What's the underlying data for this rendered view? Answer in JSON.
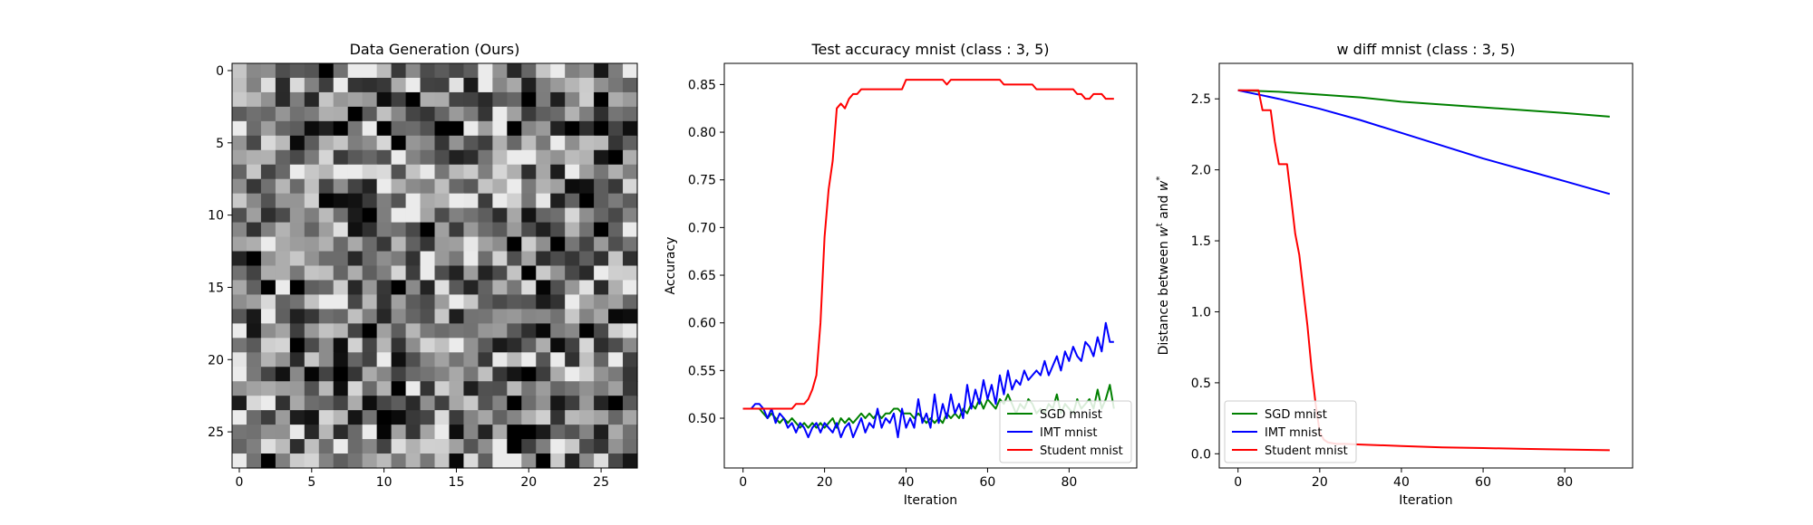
{
  "chart_data": [
    {
      "type": "heatmap",
      "title": "Data Generation (Ours)",
      "xlabel": "",
      "ylabel": "",
      "colormap": "gray",
      "xlim": [
        -0.5,
        27.5
      ],
      "ylim": [
        27.5,
        -0.5
      ],
      "xticks": [
        0,
        5,
        10,
        15,
        20,
        25
      ],
      "yticks": [
        0,
        5,
        10,
        15,
        20,
        25
      ],
      "rows": 28,
      "cols": 28,
      "note_values": "random grayscale noise pattern, 0 = black, 1 = white"
    },
    {
      "type": "line",
      "title": "Test accuracy mnist (class : 3, 5)",
      "xlabel": "Iteration",
      "ylabel": "Accuracy",
      "xlim": [
        -4.6,
        96.6
      ],
      "ylim": [
        0.4478,
        0.8722
      ],
      "xticks": [
        0,
        20,
        40,
        60,
        80
      ],
      "yticks": [
        0.5,
        0.55,
        0.6,
        0.65,
        0.7,
        0.75,
        0.8,
        0.85
      ],
      "legend_position": "lower-right",
      "series": [
        {
          "name": "SGD mnist",
          "color": "#008000",
          "x_start": 0,
          "values": [
            0.51,
            0.51,
            0.51,
            0.51,
            0.51,
            0.505,
            0.5,
            0.505,
            0.5,
            0.495,
            0.5,
            0.495,
            0.5,
            0.495,
            0.49,
            0.495,
            0.49,
            0.495,
            0.49,
            0.495,
            0.49,
            0.495,
            0.5,
            0.49,
            0.5,
            0.495,
            0.5,
            0.495,
            0.5,
            0.505,
            0.5,
            0.505,
            0.5,
            0.505,
            0.5,
            0.505,
            0.505,
            0.51,
            0.51,
            0.505,
            0.505,
            0.505,
            0.5,
            0.505,
            0.5,
            0.495,
            0.5,
            0.495,
            0.5,
            0.495,
            0.505,
            0.5,
            0.505,
            0.5,
            0.51,
            0.505,
            0.515,
            0.51,
            0.52,
            0.51,
            0.52,
            0.515,
            0.51,
            0.52,
            0.515,
            0.525,
            0.515,
            0.505,
            0.515,
            0.51,
            0.52,
            0.515,
            0.505,
            0.51,
            0.505,
            0.515,
            0.51,
            0.525,
            0.505,
            0.515,
            0.51,
            0.505,
            0.52,
            0.51,
            0.515,
            0.52,
            0.51,
            0.53,
            0.51,
            0.52,
            0.535,
            0.51
          ]
        },
        {
          "name": "IMT mnist",
          "color": "#0000ff",
          "x_start": 0,
          "values": [
            0.51,
            0.51,
            0.51,
            0.515,
            0.515,
            0.51,
            0.5,
            0.51,
            0.495,
            0.505,
            0.5,
            0.49,
            0.495,
            0.485,
            0.495,
            0.49,
            0.48,
            0.49,
            0.495,
            0.485,
            0.495,
            0.49,
            0.485,
            0.495,
            0.48,
            0.49,
            0.495,
            0.48,
            0.49,
            0.5,
            0.485,
            0.495,
            0.49,
            0.51,
            0.49,
            0.5,
            0.495,
            0.505,
            0.48,
            0.51,
            0.49,
            0.5,
            0.49,
            0.52,
            0.495,
            0.505,
            0.49,
            0.525,
            0.495,
            0.515,
            0.5,
            0.525,
            0.505,
            0.515,
            0.5,
            0.535,
            0.51,
            0.53,
            0.515,
            0.54,
            0.52,
            0.535,
            0.515,
            0.545,
            0.525,
            0.55,
            0.53,
            0.54,
            0.535,
            0.55,
            0.54,
            0.545,
            0.55,
            0.545,
            0.56,
            0.545,
            0.555,
            0.565,
            0.55,
            0.57,
            0.56,
            0.575,
            0.565,
            0.56,
            0.58,
            0.575,
            0.565,
            0.585,
            0.57,
            0.6,
            0.58,
            0.58
          ]
        },
        {
          "name": "Student mnist",
          "color": "#ff0000",
          "x_start": 0,
          "values": [
            0.51,
            0.51,
            0.51,
            0.51,
            0.51,
            0.51,
            0.51,
            0.51,
            0.51,
            0.51,
            0.51,
            0.51,
            0.51,
            0.515,
            0.515,
            0.515,
            0.52,
            0.53,
            0.545,
            0.6,
            0.69,
            0.74,
            0.77,
            0.825,
            0.83,
            0.825,
            0.835,
            0.84,
            0.84,
            0.845,
            0.845,
            0.845,
            0.845,
            0.845,
            0.845,
            0.845,
            0.845,
            0.845,
            0.845,
            0.845,
            0.855,
            0.855,
            0.855,
            0.855,
            0.855,
            0.855,
            0.855,
            0.855,
            0.855,
            0.855,
            0.85,
            0.855,
            0.855,
            0.855,
            0.855,
            0.855,
            0.855,
            0.855,
            0.855,
            0.855,
            0.855,
            0.855,
            0.855,
            0.855,
            0.85,
            0.85,
            0.85,
            0.85,
            0.85,
            0.85,
            0.85,
            0.85,
            0.845,
            0.845,
            0.845,
            0.845,
            0.845,
            0.845,
            0.845,
            0.845,
            0.845,
            0.845,
            0.84,
            0.84,
            0.835,
            0.835,
            0.84,
            0.84,
            0.84,
            0.835,
            0.835,
            0.835
          ]
        }
      ]
    },
    {
      "type": "line",
      "title": "w diff mnist (class : 3, 5)",
      "xlabel": "Iteration",
      "ylabel": "Distance between w^t and w^*",
      "ylabel_main": "Distance between ",
      "ylabel_w": "w",
      "ylabel_t": "t",
      "ylabel_and": " and ",
      "ylabel_star": "*",
      "xlim": [
        -4.6,
        96.6
      ],
      "ylim": [
        -0.1,
        2.75
      ],
      "xticks": [
        0,
        20,
        40,
        60,
        80
      ],
      "yticks": [
        0.0,
        0.5,
        1.0,
        1.5,
        2.0,
        2.5
      ],
      "legend_position": "lower-left",
      "series": [
        {
          "name": "SGD mnist",
          "color": "#008000",
          "x": [
            0,
            10,
            20,
            30,
            40,
            50,
            60,
            70,
            80,
            91
          ],
          "values": [
            2.56,
            2.55,
            2.53,
            2.51,
            2.48,
            2.46,
            2.44,
            2.42,
            2.4,
            2.375
          ]
        },
        {
          "name": "IMT mnist",
          "color": "#0000ff",
          "x": [
            0,
            10,
            20,
            30,
            40,
            50,
            60,
            70,
            80,
            91
          ],
          "values": [
            2.56,
            2.5,
            2.43,
            2.35,
            2.26,
            2.17,
            2.08,
            2.0,
            1.92,
            1.83
          ]
        },
        {
          "name": "Student mnist",
          "color": "#ff0000",
          "x": [
            0,
            1,
            2,
            3,
            4,
            5,
            6,
            7,
            8,
            9,
            10,
            11,
            12,
            13,
            14,
            15,
            16,
            17,
            18,
            19,
            20,
            21,
            22,
            24,
            26,
            30,
            40,
            50,
            60,
            70,
            80,
            91
          ],
          "values": [
            2.56,
            2.56,
            2.56,
            2.56,
            2.56,
            2.56,
            2.42,
            2.42,
            2.42,
            2.2,
            2.04,
            2.04,
            2.04,
            1.8,
            1.55,
            1.4,
            1.15,
            0.9,
            0.6,
            0.35,
            0.15,
            0.1,
            0.08,
            0.07,
            0.07,
            0.065,
            0.055,
            0.045,
            0.04,
            0.035,
            0.03,
            0.025
          ]
        }
      ]
    }
  ]
}
